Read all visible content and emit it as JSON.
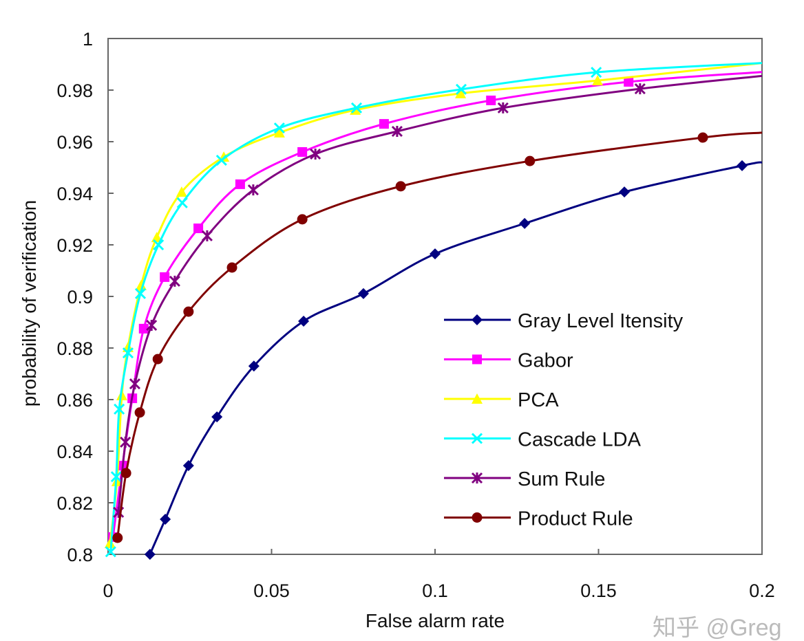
{
  "chart_data": {
    "type": "line",
    "title": "",
    "xlabel": "False alarm rate",
    "ylabel": "probability of verification",
    "xlim": [
      0,
      0.2
    ],
    "ylim": [
      0.8,
      1.0
    ],
    "xticks": [
      "0",
      "0.05",
      "0.1",
      "0.15",
      "0.2"
    ],
    "xtick_values": [
      0,
      0.05,
      0.1,
      0.15,
      0.2
    ],
    "yticks": [
      "0.8",
      "0.82",
      "0.84",
      "0.86",
      "0.88",
      "0.9",
      "0.92",
      "0.94",
      "0.96",
      "0.98",
      "1"
    ],
    "ytick_values": [
      0.8,
      0.82,
      0.84,
      0.86,
      0.88,
      0.9,
      0.92,
      0.94,
      0.96,
      0.98,
      1.0
    ],
    "grid": false,
    "legend_position": "lower-right",
    "series": [
      {
        "name": "Gray Level Itensity",
        "color": "#000080",
        "marker": "diamond",
        "x": [
          0.0128,
          0.0175,
          0.0246,
          0.0333,
          0.0446,
          0.0598,
          0.0781,
          0.1,
          0.1274,
          0.1579,
          0.1939,
          0.2
        ],
        "y": [
          0.8,
          0.8136,
          0.8344,
          0.8533,
          0.873,
          0.8904,
          0.9011,
          0.9165,
          0.9283,
          0.9405,
          0.9507,
          0.952
        ],
        "markers": [
          1,
          1,
          1,
          1,
          1,
          1,
          1,
          1,
          1,
          1,
          1,
          0
        ]
      },
      {
        "name": "Gabor",
        "color": "#ff00ff",
        "marker": "square",
        "x": [
          0.0015,
          0.0044,
          0.0074,
          0.0109,
          0.0173,
          0.0276,
          0.0404,
          0.0594,
          0.0844,
          0.1171,
          0.1592,
          0.2
        ],
        "y": [
          0.8067,
          0.8344,
          0.8605,
          0.8875,
          0.9075,
          0.9264,
          0.9435,
          0.956,
          0.9669,
          0.976,
          0.9832,
          0.987
        ],
        "markers": [
          1,
          1,
          1,
          1,
          1,
          1,
          1,
          1,
          1,
          1,
          1,
          0
        ]
      },
      {
        "name": "PCA",
        "color": "#ffff00",
        "marker": "triangle",
        "x": [
          0.0006,
          0.0027,
          0.0042,
          0.0061,
          0.0101,
          0.0149,
          0.0225,
          0.0354,
          0.0524,
          0.0756,
          0.1078,
          0.1497,
          0.2
        ],
        "y": [
          0.8043,
          0.8283,
          0.8616,
          0.8803,
          0.9043,
          0.9229,
          0.9405,
          0.9541,
          0.9635,
          0.9723,
          0.9787,
          0.9837,
          0.9905
        ],
        "markers": [
          1,
          1,
          1,
          1,
          1,
          1,
          1,
          1,
          1,
          1,
          1,
          1,
          0
        ]
      },
      {
        "name": "Cascade LDA",
        "color": "#00ffff",
        "marker": "x",
        "x": [
          0.0008,
          0.0025,
          0.0034,
          0.0061,
          0.0099,
          0.0154,
          0.0227,
          0.0347,
          0.0524,
          0.076,
          0.108,
          0.1493,
          0.2
        ],
        "y": [
          0.801,
          0.8301,
          0.8563,
          0.8781,
          0.9011,
          0.92,
          0.9363,
          0.9528,
          0.9653,
          0.9731,
          0.9803,
          0.9869,
          0.9905
        ],
        "markers": [
          1,
          1,
          1,
          1,
          1,
          1,
          1,
          1,
          1,
          1,
          1,
          1,
          0
        ]
      },
      {
        "name": "Sum Rule",
        "color": "#800080",
        "marker": "asterisk",
        "x": [
          0.0032,
          0.0053,
          0.0082,
          0.0133,
          0.0204,
          0.0303,
          0.0444,
          0.0634,
          0.0884,
          0.1208,
          0.1627,
          0.2
        ],
        "y": [
          0.8163,
          0.8435,
          0.8661,
          0.8888,
          0.9059,
          0.9235,
          0.9413,
          0.9552,
          0.964,
          0.9731,
          0.9805,
          0.9855
        ],
        "markers": [
          1,
          1,
          1,
          1,
          1,
          1,
          1,
          1,
          1,
          1,
          1,
          0
        ]
      },
      {
        "name": "Product Rule",
        "color": "#800000",
        "marker": "circle",
        "x": [
          0.0029,
          0.0055,
          0.0097,
          0.0152,
          0.0246,
          0.0379,
          0.0594,
          0.0895,
          0.129,
          0.1819,
          0.2
        ],
        "y": [
          0.8064,
          0.8315,
          0.855,
          0.8757,
          0.8941,
          0.9112,
          0.9299,
          0.9427,
          0.9525,
          0.9616,
          0.9635
        ],
        "markers": [
          1,
          1,
          1,
          1,
          1,
          1,
          1,
          1,
          1,
          1,
          0
        ]
      }
    ]
  },
  "watermark": "知乎 @Greg"
}
